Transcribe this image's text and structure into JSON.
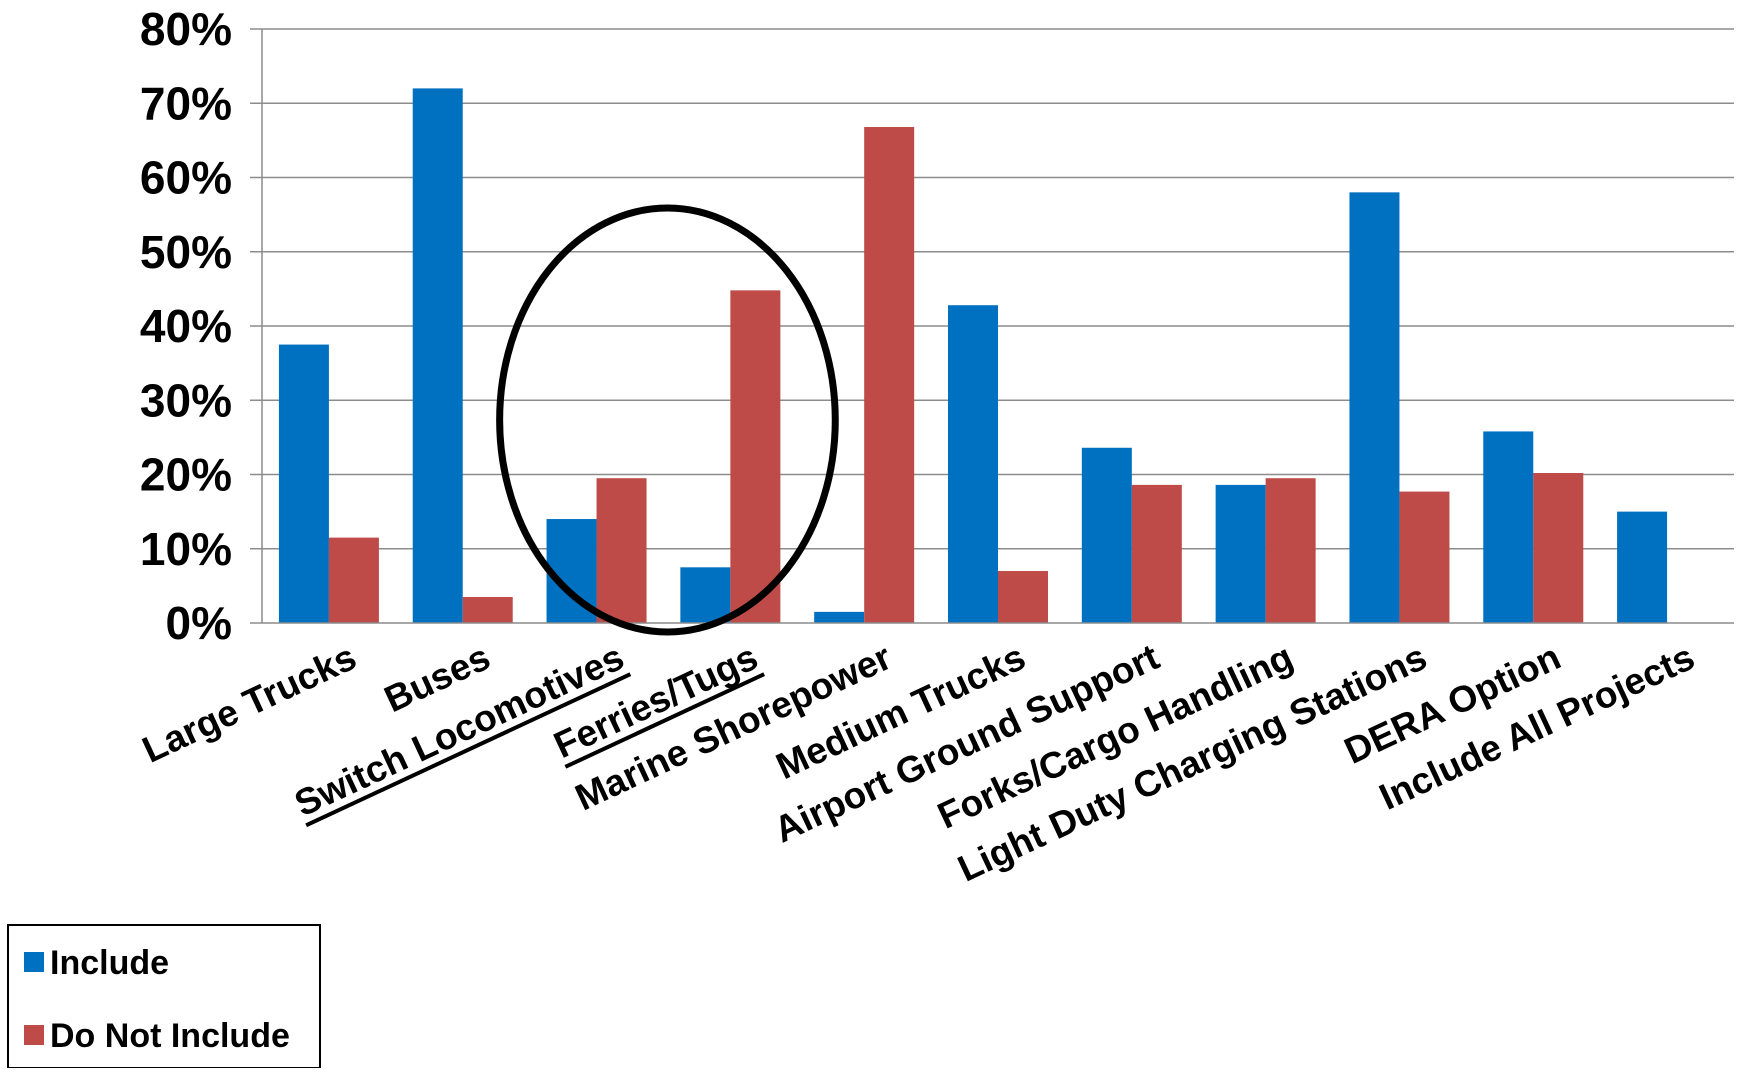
{
  "colors": {
    "include": "#0070C0",
    "do_not_include": "#BE4B48",
    "grid": "#8C8C8C",
    "highlight_ellipse": "#000000"
  },
  "chart_data": {
    "type": "bar",
    "title": "",
    "xlabel": "",
    "ylabel": "",
    "ylim": [
      0,
      0.8
    ],
    "yticks": [
      "0%",
      "10%",
      "20%",
      "30%",
      "40%",
      "50%",
      "60%",
      "70%",
      "80%"
    ],
    "grid": true,
    "legend_position": "bottom-left",
    "categories": [
      "Large Trucks",
      "Buses",
      "Switch Locomotives",
      "Ferries/Tugs",
      "Marine Shorepower",
      "Medium Trucks",
      "Airport Ground Support",
      "Forks/Cargo Handling",
      "Light Duty Charging Stations",
      "DERA Option",
      "Include All Projects"
    ],
    "underlined_categories": [
      "Switch Locomotives",
      "Ferries/Tugs"
    ],
    "highlighted_categories": [
      "Switch Locomotives",
      "Ferries/Tugs"
    ],
    "series": [
      {
        "name": "Include",
        "color": "#0070C0",
        "values": [
          0.375,
          0.72,
          0.14,
          0.075,
          0.015,
          0.428,
          0.236,
          0.186,
          0.58,
          0.258,
          0.15
        ]
      },
      {
        "name": "Do Not Include",
        "color": "#BE4B48",
        "values": [
          0.115,
          0.035,
          0.195,
          0.448,
          0.668,
          0.07,
          0.186,
          0.195,
          0.177,
          0.202,
          null
        ]
      }
    ]
  }
}
